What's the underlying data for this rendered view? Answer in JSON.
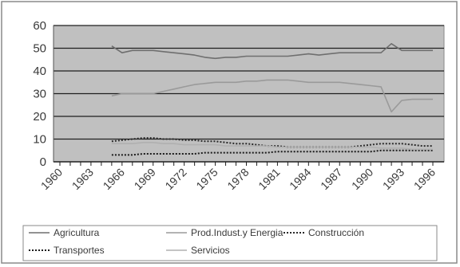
{
  "chart_data": {
    "type": "line",
    "title": "",
    "xlabel": "",
    "ylabel": "",
    "ylim": [
      0,
      60
    ],
    "yticks": [
      0,
      10,
      20,
      30,
      40,
      50,
      60
    ],
    "xticks": [
      "1960",
      "1963",
      "1966",
      "1969",
      "1972",
      "1975",
      "1978",
      "1981",
      "1984",
      "1987",
      "1990",
      "1993",
      "1996"
    ],
    "grid": "horizontal",
    "legend_position": "bottom",
    "series": [
      {
        "name": "Agricultura",
        "color": "#6f6f6f",
        "dash": "solid",
        "x": [
          1965,
          1966,
          1967,
          1968,
          1969,
          1970,
          1971,
          1972,
          1973,
          1974,
          1975,
          1976,
          1977,
          1978,
          1979,
          1980,
          1981,
          1982,
          1983,
          1984,
          1985,
          1986,
          1987,
          1988,
          1989,
          1990,
          1991,
          1992,
          1993,
          1994,
          1995,
          1996
        ],
        "y": [
          51,
          48,
          49,
          49,
          49,
          48.5,
          48,
          47.5,
          47,
          46,
          45.5,
          46,
          46,
          46.5,
          46.5,
          46.5,
          46.5,
          46.5,
          47,
          47.5,
          47,
          47.5,
          48,
          48,
          48,
          48,
          48,
          52,
          49,
          49,
          49,
          49
        ]
      },
      {
        "name": "Prod.Indust.y Energia",
        "color": "#9a9a9a",
        "dash": "solid",
        "x": [
          1965,
          1966,
          1967,
          1968,
          1969,
          1970,
          1971,
          1972,
          1973,
          1974,
          1975,
          1976,
          1977,
          1978,
          1979,
          1980,
          1981,
          1982,
          1983,
          1984,
          1985,
          1986,
          1987,
          1988,
          1989,
          1990,
          1991,
          1992,
          1993,
          1994,
          1995,
          1996
        ],
        "y": [
          29,
          30,
          30,
          30,
          30,
          31,
          32,
          33,
          34,
          34.5,
          35,
          35,
          35,
          35.5,
          35.5,
          36,
          36,
          36,
          35.5,
          35,
          35,
          35,
          35,
          34.5,
          34,
          33.5,
          33,
          22,
          27,
          27.5,
          27.5,
          27.5
        ]
      },
      {
        "name": "Construcción",
        "color": "#2a2a2a",
        "dash": "dotted",
        "x": [
          1965,
          1966,
          1967,
          1968,
          1969,
          1970,
          1971,
          1972,
          1973,
          1974,
          1975,
          1976,
          1977,
          1978,
          1979,
          1980,
          1981,
          1982,
          1983,
          1984,
          1985,
          1986,
          1987,
          1988,
          1989,
          1990,
          1991,
          1992,
          1993,
          1994,
          1995,
          1996
        ],
        "y": [
          9,
          9.5,
          10,
          10.5,
          10.5,
          10,
          10,
          9.5,
          9.5,
          9,
          9,
          8.5,
          8,
          8,
          7.5,
          7,
          7,
          6.5,
          6.5,
          6.5,
          6.5,
          6.5,
          6.5,
          6.5,
          7,
          7.5,
          8,
          8,
          8,
          7.5,
          7,
          7
        ]
      },
      {
        "name": "Transportes",
        "color": "#1a1a1a",
        "dash": "dotted",
        "x": [
          1965,
          1966,
          1967,
          1968,
          1969,
          1970,
          1971,
          1972,
          1973,
          1974,
          1975,
          1976,
          1977,
          1978,
          1979,
          1980,
          1981,
          1982,
          1983,
          1984,
          1985,
          1986,
          1987,
          1988,
          1989,
          1990,
          1991,
          1992,
          1993,
          1994,
          1995,
          1996
        ],
        "y": [
          3,
          3,
          3,
          3.5,
          3.5,
          3.5,
          3.5,
          3.5,
          3.5,
          4,
          4,
          4,
          4,
          4,
          4,
          4,
          4.5,
          4.5,
          4.5,
          4.5,
          4.5,
          4.5,
          4.5,
          4.5,
          4.5,
          4.5,
          5,
          5,
          5,
          5,
          5,
          5
        ]
      },
      {
        "name": "Servicios",
        "color": "#b0b0b0",
        "dash": "solid",
        "x": [
          1965,
          1966,
          1967,
          1968,
          1969,
          1970,
          1971,
          1972,
          1973,
          1974,
          1975,
          1976,
          1977,
          1978,
          1979,
          1980,
          1981,
          1982,
          1983,
          1984,
          1985,
          1986,
          1987,
          1988,
          1989,
          1990,
          1991,
          1992,
          1993,
          1994,
          1995,
          1996
        ],
        "y": [
          8,
          8,
          8,
          8.5,
          8.5,
          8,
          8,
          7.5,
          7.5,
          7.5,
          7.5,
          7,
          7,
          7,
          7,
          7,
          6.5,
          6.5,
          6.5,
          6.5,
          6.5,
          6.5,
          6.5,
          6.5,
          6.5,
          6.5,
          6,
          6,
          6,
          5.5,
          5.5,
          5.5
        ]
      }
    ],
    "colors": {
      "plot_background": "#c0c0c0",
      "gridline": "#1f1f1f",
      "frame": "#8a8a8a",
      "page_background": "#ffffff"
    }
  }
}
